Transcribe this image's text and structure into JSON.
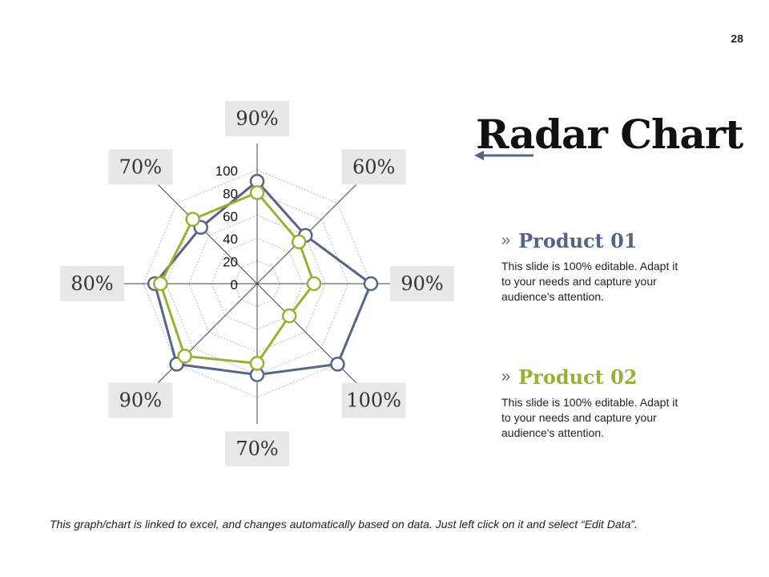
{
  "page_number": "28",
  "title": "Radar Chart",
  "colors": {
    "product1": "#5b6385",
    "product2": "#9bb033"
  },
  "products": [
    {
      "name": "Product 01",
      "color": "#5b6385",
      "desc": "This slide is 100% editable. Adapt it to your needs and capture your audience's attention."
    },
    {
      "name": "Product 02",
      "color": "#9bb033",
      "desc": "This slide is 100% editable. Adapt it to your needs and capture your audience's attention."
    }
  ],
  "footer_note": "This graph/chart is linked to excel, and changes automatically based on data. Just left click on it and select “Edit Data”.",
  "chart_data": {
    "type": "radar",
    "axis_labels": [
      "90%",
      "60%",
      "90%",
      "100%",
      "70%",
      "90%",
      "80%",
      "70%"
    ],
    "ticks": [
      0,
      20,
      40,
      60,
      80,
      100
    ],
    "rlim": [
      0,
      100
    ],
    "grid": true,
    "series": [
      {
        "name": "Product 01",
        "color": "#5b6385",
        "values": [
          90,
          60,
          100,
          100,
          80,
          100,
          90,
          70
        ]
      },
      {
        "name": "Product 02",
        "color": "#9bb033",
        "values": [
          80,
          52,
          50,
          40,
          70,
          90,
          85,
          80
        ]
      }
    ]
  }
}
